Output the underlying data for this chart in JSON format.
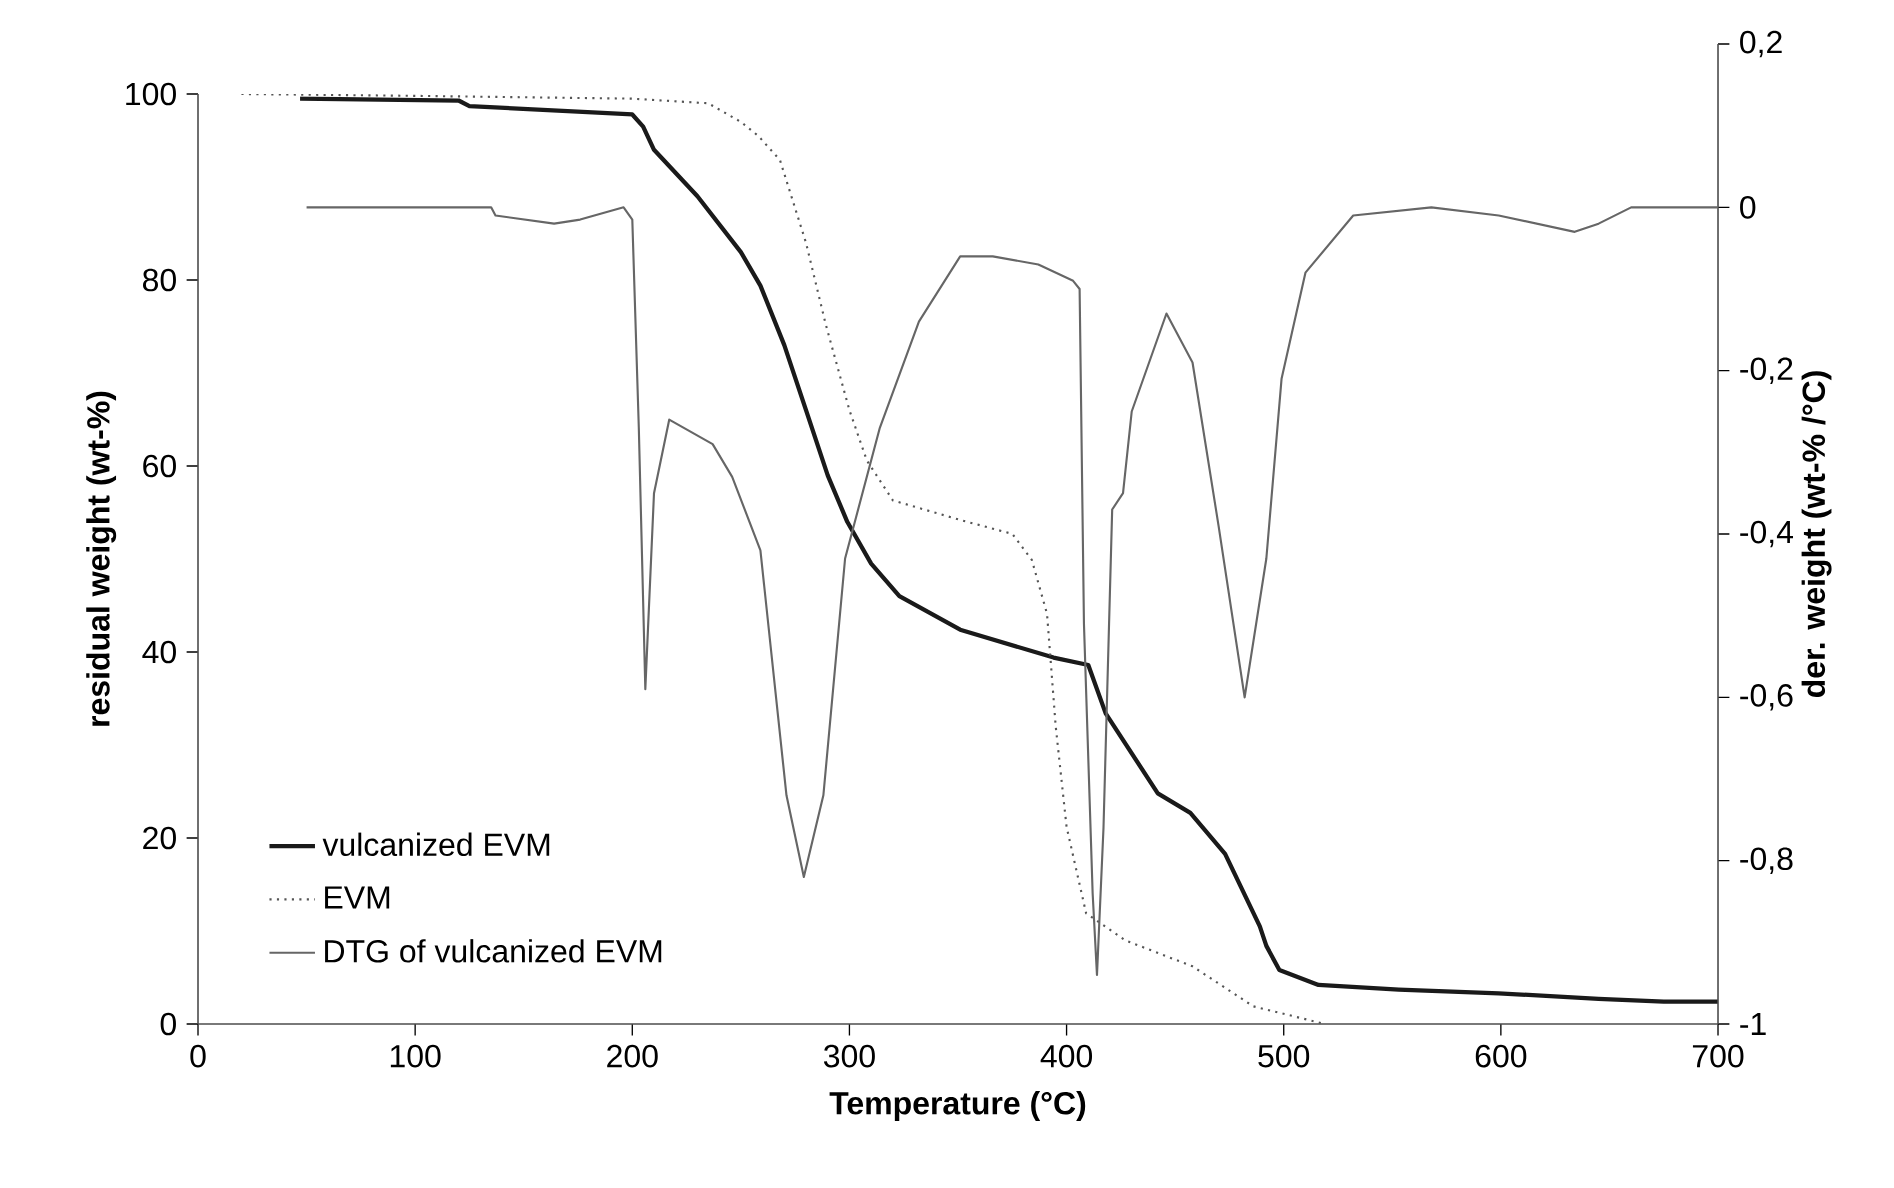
{
  "chart_data": {
    "type": "line",
    "xlabel": "Temperature (°C)",
    "ylabel": "residual weight (wt-%)",
    "y2label": "der. weight (wt-% /°C)",
    "xlim": [
      0,
      700
    ],
    "xticks": [
      0,
      100,
      200,
      300,
      400,
      500,
      600,
      700
    ],
    "ylim": [
      0,
      100
    ],
    "yticks": [
      0,
      20,
      40,
      60,
      80,
      100
    ],
    "y2lim": [
      -1,
      0.2
    ],
    "y2ticks": [
      {
        "value": -1,
        "label": "-1"
      },
      {
        "value": -0.8,
        "label": "-0,8"
      },
      {
        "value": -0.6,
        "label": "-0,6"
      },
      {
        "value": -0.4,
        "label": "-0,4"
      },
      {
        "value": -0.2,
        "label": "-0,2"
      },
      {
        "value": 0,
        "label": "0"
      },
      {
        "value": 0.2,
        "label": "0,2"
      }
    ],
    "legend": "bottom left",
    "grid": false,
    "series": [
      {
        "name": "vulcanized EVM",
        "color": "#1a1a1a",
        "line_style": "solid",
        "x": [
          47,
          120,
          125,
          200,
          205,
          210,
          230,
          250,
          259,
          270,
          280,
          290,
          299,
          310,
          323,
          351,
          394,
          410,
          418,
          442,
          457,
          473,
          489,
          492,
          498,
          516,
          553,
          599,
          645,
          675,
          700
        ],
        "values": [
          99.5,
          99.3,
          98.7,
          97.8,
          96.5,
          94,
          89,
          83,
          79.4,
          73,
          66,
          59,
          54,
          49.5,
          46,
          42.4,
          39.4,
          38.6,
          33.4,
          24.8,
          22.7,
          18.3,
          10.5,
          8.4,
          5.8,
          4.2,
          3.7,
          3.3,
          2.7,
          2.4,
          2.4
        ]
      },
      {
        "name": "EVM",
        "color": "#555555",
        "line_style": "dotted",
        "x": [
          20,
          100,
          200,
          235,
          250,
          258,
          268,
          280,
          289,
          300,
          308,
          320,
          351,
          375,
          384,
          391,
          395,
          400,
          409,
          427,
          458,
          486,
          519
        ],
        "values": [
          100,
          99.8,
          99.5,
          99,
          97,
          95.5,
          92.9,
          84,
          75.3,
          66,
          60.6,
          56.3,
          54.2,
          52.7,
          49.9,
          44.1,
          32,
          21.2,
          11.9,
          9,
          6.2,
          1.9,
          0
        ]
      },
      {
        "name": "DTG of vulcanized EVM",
        "color": "#666666",
        "line_style": "solid",
        "axis": "y2",
        "x": [
          50,
          135,
          137,
          164,
          176,
          196,
          200,
          203,
          206,
          210,
          217,
          237,
          246,
          259,
          271,
          279,
          288,
          298,
          314,
          332,
          351,
          366,
          387,
          403,
          406,
          408,
          412,
          414,
          417,
          421,
          426,
          430,
          446,
          458,
          470,
          482,
          492,
          499,
          510,
          532,
          568,
          599,
          634,
          645,
          660,
          700
        ],
        "values": [
          0,
          0,
          -0.01,
          -0.02,
          -0.015,
          0,
          -0.015,
          -0.27,
          -0.59,
          -0.35,
          -0.26,
          -0.29,
          -0.33,
          -0.42,
          -0.72,
          -0.82,
          -0.72,
          -0.43,
          -0.27,
          -0.14,
          -0.06,
          -0.06,
          -0.07,
          -0.09,
          -0.1,
          -0.51,
          -0.84,
          -0.94,
          -0.76,
          -0.37,
          -0.35,
          -0.25,
          -0.13,
          -0.19,
          -0.39,
          -0.6,
          -0.43,
          -0.21,
          -0.08,
          -0.01,
          0,
          -0.01,
          -0.03,
          -0.02,
          0,
          0
        ]
      }
    ]
  }
}
